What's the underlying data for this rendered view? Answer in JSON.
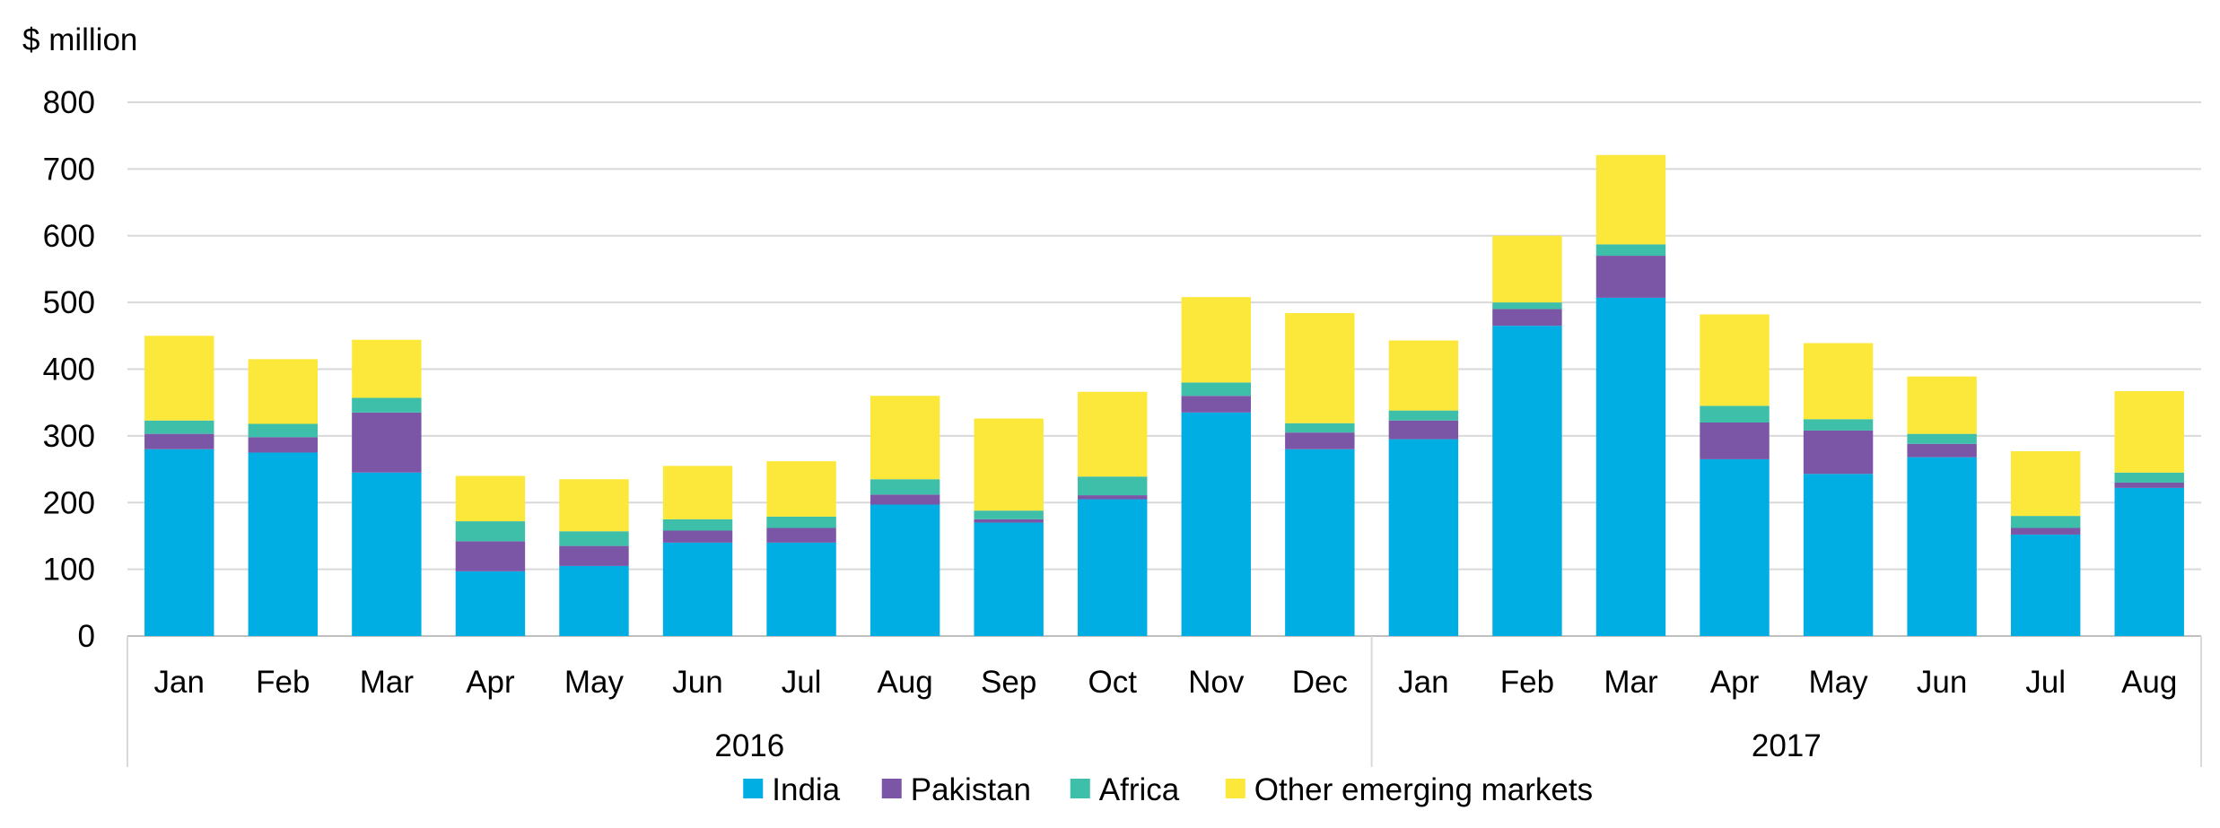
{
  "chart_data": {
    "type": "bar",
    "stacked": true,
    "y_unit_label": "$ million",
    "ylim": [
      0,
      800
    ],
    "y_ticks": [
      0,
      100,
      200,
      300,
      400,
      500,
      600,
      700,
      800
    ],
    "grid": true,
    "legend_position": "bottom",
    "categories": [
      "Jan",
      "Feb",
      "Mar",
      "Apr",
      "May",
      "Jun",
      "Jul",
      "Aug",
      "Sep",
      "Oct",
      "Nov",
      "Dec",
      "Jan",
      "Feb",
      "Mar",
      "Apr",
      "May",
      "Jun",
      "Jul",
      "Aug"
    ],
    "year_groups": [
      {
        "label": "2016",
        "count": 12
      },
      {
        "label": "2017",
        "count": 8
      }
    ],
    "series": [
      {
        "name": "India",
        "color": "#00AEE4",
        "values": [
          280,
          275,
          245,
          97,
          105,
          140,
          140,
          197,
          170,
          205,
          335,
          280,
          295,
          465,
          507,
          265,
          243,
          268,
          152,
          222
        ]
      },
      {
        "name": "Pakistan",
        "color": "#7B56A6",
        "values": [
          23,
          23,
          90,
          45,
          30,
          18,
          22,
          15,
          5,
          6,
          25,
          25,
          28,
          25,
          63,
          55,
          65,
          20,
          10,
          8
        ]
      },
      {
        "name": "Africa",
        "color": "#3DBFAA",
        "values": [
          20,
          20,
          22,
          30,
          22,
          17,
          17,
          23,
          13,
          28,
          20,
          14,
          15,
          10,
          17,
          25,
          17,
          15,
          18,
          15
        ]
      },
      {
        "name": "Other emerging markets",
        "color": "#FCE83A",
        "values": [
          127,
          97,
          87,
          68,
          78,
          80,
          83,
          125,
          138,
          127,
          128,
          165,
          105,
          100,
          134,
          137,
          114,
          86,
          97,
          122
        ]
      }
    ]
  }
}
